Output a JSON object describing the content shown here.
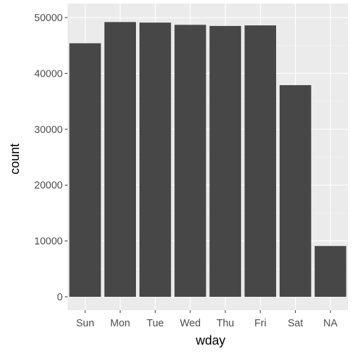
{
  "chart_data": {
    "type": "bar",
    "categories": [
      "Sun",
      "Mon",
      "Tue",
      "Wed",
      "Thu",
      "Fri",
      "Sat",
      "NA"
    ],
    "values": [
      45400,
      49200,
      49100,
      48700,
      48500,
      48600,
      37900,
      9100
    ],
    "xlabel": "wday",
    "ylabel": "count",
    "ylim": [
      -2500,
      51000
    ],
    "yticks": [
      0,
      10000,
      20000,
      30000,
      40000,
      50000
    ],
    "grid": true,
    "legend": "none"
  },
  "colors": {
    "panel_background": "#ebebeb",
    "grid_major": "#ffffff",
    "grid_minor": "#f5f5f5",
    "bar_fill": "#474747",
    "tick_text": "#4d4d4d",
    "axis_title": "#000000"
  }
}
